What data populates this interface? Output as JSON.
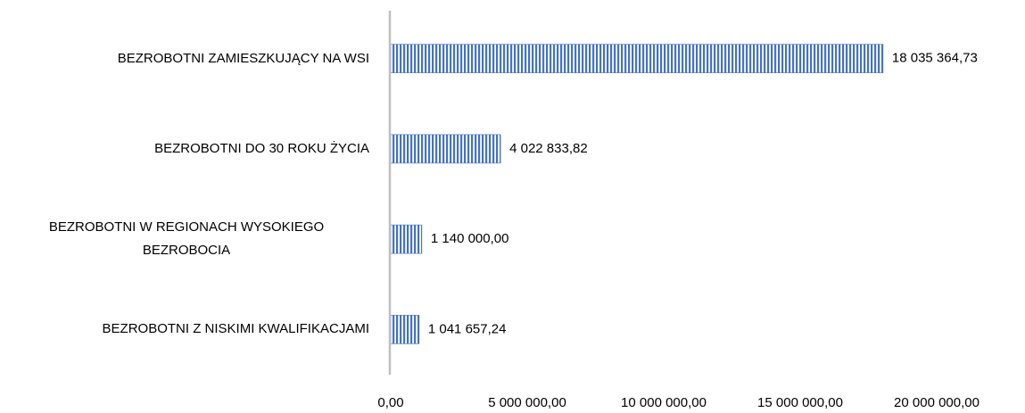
{
  "chart_data": {
    "type": "bar",
    "orientation": "horizontal",
    "categories": [
      "BEZROBOTNI ZAMIESZKUJĄCY NA WSI",
      "BEZROBOTNI DO 30 ROKU ŻYCIA",
      "BEZROBOTNI W REGIONACH WYSOKIEGO BEZROBOCIA",
      "BEZROBOTNI Z NISKIMI KWALIFIKACJAMI"
    ],
    "values": [
      18035364.73,
      4022833.82,
      1140000.0,
      1041657.24
    ],
    "value_labels": [
      "18 035 364,73",
      "4 022 833,82",
      "1 140 000,00",
      "1 041 657,24"
    ],
    "color": "#4472c4",
    "xlim": [
      0,
      20000000
    ],
    "xticks": [
      {
        "value": 0,
        "label": "0,00"
      },
      {
        "value": 5000000,
        "label": "5 000 000,00"
      },
      {
        "value": 10000000,
        "label": "10 000 000,00"
      },
      {
        "value": 15000000,
        "label": "15 000 000,00"
      },
      {
        "value": 20000000,
        "label": "20 000 000,00"
      }
    ],
    "grid": false
  }
}
